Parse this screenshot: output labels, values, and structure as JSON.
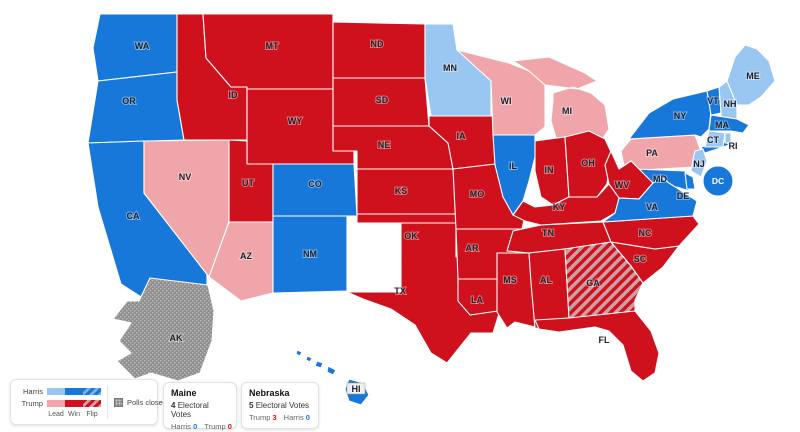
{
  "map": {
    "states": [
      {
        "abbr": "WA",
        "result": "harris-win"
      },
      {
        "abbr": "OR",
        "result": "harris-win"
      },
      {
        "abbr": "CA",
        "result": "harris-win"
      },
      {
        "abbr": "ID",
        "result": "trump-win"
      },
      {
        "abbr": "NV",
        "result": "trump-lead"
      },
      {
        "abbr": "MT",
        "result": "trump-win"
      },
      {
        "abbr": "WY",
        "result": "trump-win"
      },
      {
        "abbr": "UT",
        "result": "trump-win"
      },
      {
        "abbr": "CO",
        "result": "harris-win"
      },
      {
        "abbr": "AZ",
        "result": "trump-lead"
      },
      {
        "abbr": "NM",
        "result": "harris-win"
      },
      {
        "abbr": "ND",
        "result": "trump-win"
      },
      {
        "abbr": "SD",
        "result": "trump-win"
      },
      {
        "abbr": "NE",
        "result": "trump-win"
      },
      {
        "abbr": "KS",
        "result": "trump-win"
      },
      {
        "abbr": "OK",
        "result": "trump-win"
      },
      {
        "abbr": "TX",
        "result": "trump-win"
      },
      {
        "abbr": "MN",
        "result": "harris-lead"
      },
      {
        "abbr": "IA",
        "result": "trump-win"
      },
      {
        "abbr": "MO",
        "result": "trump-win"
      },
      {
        "abbr": "AR",
        "result": "trump-win"
      },
      {
        "abbr": "LA",
        "result": "trump-win"
      },
      {
        "abbr": "WI",
        "result": "trump-lead"
      },
      {
        "abbr": "MI",
        "result": "trump-lead"
      },
      {
        "abbr": "IL",
        "result": "harris-win"
      },
      {
        "abbr": "IN",
        "result": "trump-win"
      },
      {
        "abbr": "OH",
        "result": "trump-win"
      },
      {
        "abbr": "KY",
        "result": "trump-win"
      },
      {
        "abbr": "TN",
        "result": "trump-win"
      },
      {
        "abbr": "MS",
        "result": "trump-win"
      },
      {
        "abbr": "AL",
        "result": "trump-win"
      },
      {
        "abbr": "GA",
        "result": "trump-flip"
      },
      {
        "abbr": "SC",
        "result": "trump-win"
      },
      {
        "abbr": "FL",
        "result": "trump-win"
      },
      {
        "abbr": "NC",
        "result": "trump-win"
      },
      {
        "abbr": "PA",
        "result": "trump-lead"
      },
      {
        "abbr": "NY",
        "result": "harris-win"
      },
      {
        "abbr": "MD",
        "result": "harris-win"
      },
      {
        "abbr": "DE",
        "result": "harris-win"
      },
      {
        "abbr": "NJ",
        "result": "harris-lead"
      },
      {
        "abbr": "WV",
        "result": "trump-win"
      },
      {
        "abbr": "VA",
        "result": "harris-win"
      },
      {
        "abbr": "VT",
        "result": "harris-win"
      },
      {
        "abbr": "NH",
        "result": "harris-lead"
      },
      {
        "abbr": "ME",
        "result": "harris-lead"
      },
      {
        "abbr": "MA",
        "result": "harris-win"
      },
      {
        "abbr": "CT",
        "result": "harris-lead"
      },
      {
        "abbr": "RI",
        "result": "harris-lead"
      },
      {
        "abbr": "DC",
        "result": "harris-win"
      },
      {
        "abbr": "AK",
        "result": "polls-closed"
      },
      {
        "abbr": "HI",
        "result": "harris-win"
      }
    ]
  },
  "legend": {
    "rows": [
      {
        "party": "Harris",
        "key": "harris"
      },
      {
        "party": "Trump",
        "key": "trump"
      }
    ],
    "segments": [
      "Lead",
      "Win",
      "Flip"
    ],
    "polls_closed": "Polls closed"
  },
  "cards": [
    {
      "title": "Maine",
      "votes": "4",
      "votes_label": "Electoral Votes",
      "results": [
        {
          "candidate": "Harris",
          "count": "0",
          "party": "harris"
        },
        {
          "candidate": "Trump",
          "count": "0",
          "party": "trump"
        }
      ]
    },
    {
      "title": "Nebraska",
      "votes": "5",
      "votes_label": "Electoral Votes",
      "results": [
        {
          "candidate": "Trump",
          "count": "3",
          "party": "trump"
        },
        {
          "candidate": "Harris",
          "count": "0",
          "party": "harris"
        }
      ]
    }
  ],
  "colors": {
    "harris_win": "#1778D9",
    "harris_lead": "#99C7F1",
    "trump_win": "#CE111C",
    "trump_lead": "#F0A5AA",
    "trump_flip_stripe": "#CE111C",
    "trump_flip_bg": "#CBA0A4",
    "polls_closed": "#8F8F8F"
  }
}
